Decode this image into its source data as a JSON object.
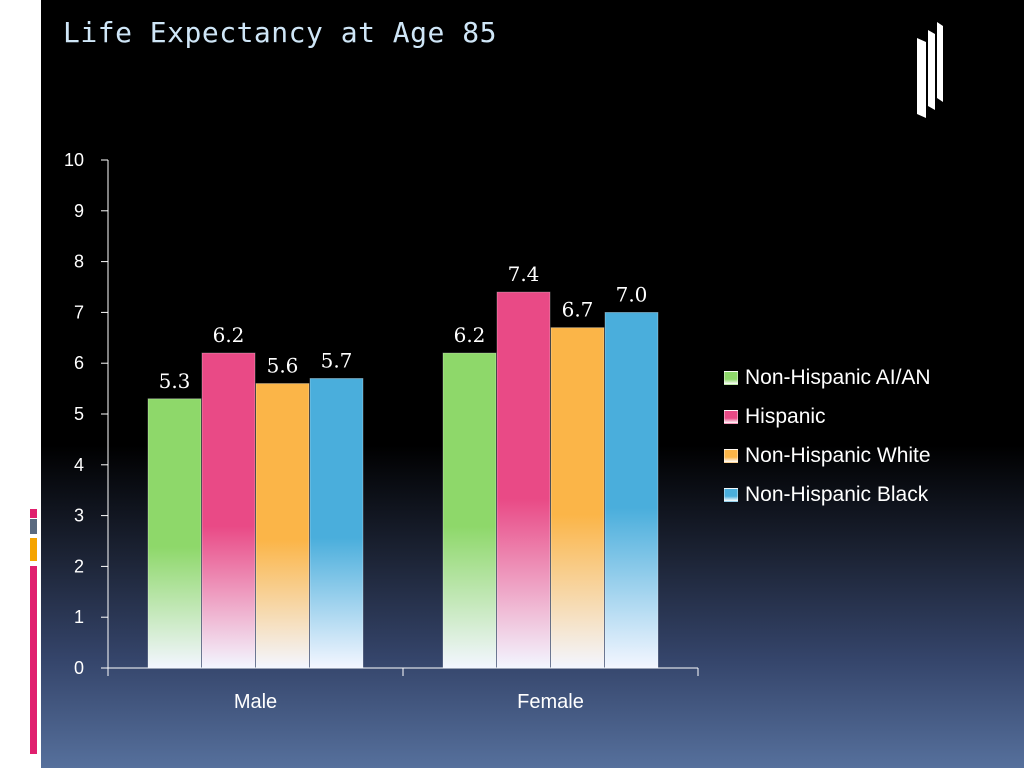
{
  "slide": {
    "title": "Life Expectancy at Age 85"
  },
  "colors": {
    "background": "#000000",
    "title": "#cfe6f7",
    "accent_pink": "#e0206e",
    "accent_gray": "#5a6a80",
    "accent_orange": "#f5a400"
  },
  "icons": [
    "window-pane-icon"
  ],
  "chart_data": {
    "type": "bar",
    "title": "",
    "xlabel": "",
    "ylabel": "",
    "categories": [
      "Male",
      "Female"
    ],
    "series": [
      {
        "name": "Non-Hispanic AI/AN",
        "values": [
          5.3,
          6.2
        ],
        "labels": [
          "5.3",
          "6.2"
        ],
        "color": "#8ed86a"
      },
      {
        "name": "Hispanic",
        "values": [
          6.2,
          7.4
        ],
        "labels": [
          "6.2",
          "7.4"
        ],
        "color": "#e94a86"
      },
      {
        "name": "Non-Hispanic White",
        "values": [
          5.6,
          6.7
        ],
        "labels": [
          "5.6",
          "6.7"
        ],
        "color": "#fbb548"
      },
      {
        "name": "Non-Hispanic Black",
        "values": [
          5.7,
          7.0
        ],
        "labels": [
          "5.7",
          "7.0"
        ],
        "color": "#4aaedc"
      }
    ],
    "ylim": [
      0,
      10
    ],
    "yticks": [
      "0",
      "1",
      "2",
      "3",
      "4",
      "5",
      "6",
      "7",
      "8",
      "9",
      "10"
    ],
    "grid": false,
    "legend_position": "right"
  }
}
